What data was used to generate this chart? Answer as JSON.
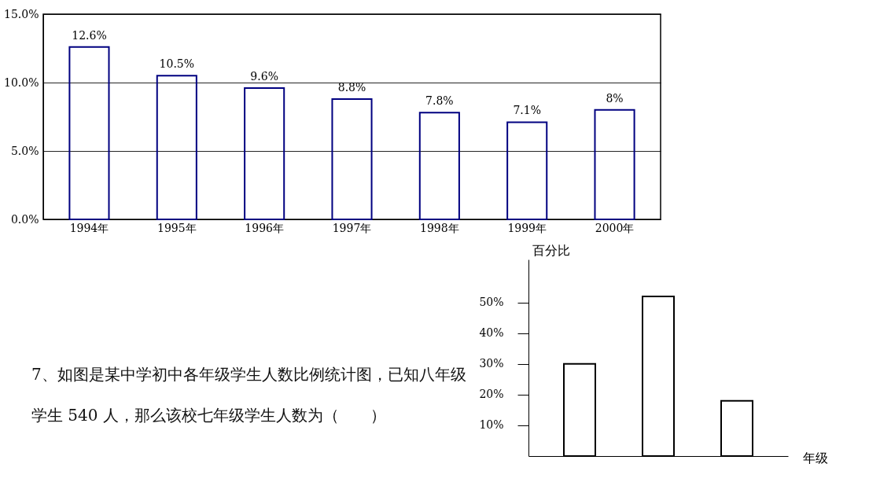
{
  "chart_data": [
    {
      "type": "bar",
      "categories": [
        "1994年",
        "1995年",
        "1996年",
        "1997年",
        "1998年",
        "1999年",
        "2000年"
      ],
      "series": [
        {
          "color": "#000080",
          "values": [
            12.6,
            10.5,
            9.6,
            8.8,
            7.8,
            7.1,
            8
          ]
        }
      ],
      "value_labels": [
        "12.6%",
        "10.5%",
        "9.6%",
        "8.8%",
        "7.8%",
        "7.1%",
        "8%"
      ],
      "ylim": [
        0,
        15
      ],
      "yticks": [
        {
          "value": 0,
          "label": "0.0%"
        },
        {
          "value": 5,
          "label": "5.0%"
        },
        {
          "value": 10,
          "label": "10.0%"
        },
        {
          "value": 15,
          "label": "15.0%"
        }
      ],
      "grid": "y"
    },
    {
      "type": "bar",
      "categories": [
        null,
        null,
        null
      ],
      "series": [
        {
          "color": "#000000",
          "values": [
            30,
            52,
            18
          ]
        }
      ],
      "ylabel": "百分比",
      "xlabel": "年级",
      "ylim": [
        0,
        64
      ],
      "yticks": [
        {
          "value": 10,
          "label": "10%"
        },
        {
          "value": 20,
          "label": "20%"
        },
        {
          "value": 30,
          "label": "30%"
        },
        {
          "value": 40,
          "label": "40%"
        },
        {
          "value": 50,
          "label": "50%"
        }
      ],
      "tick_labels": "y",
      "grid": false,
      "annotations": [
        "7、如图是某中学初中各年级学生人数比例统计图，已知八年级学生 540 人，那么该校七年级学生人数为（　　）"
      ]
    }
  ]
}
